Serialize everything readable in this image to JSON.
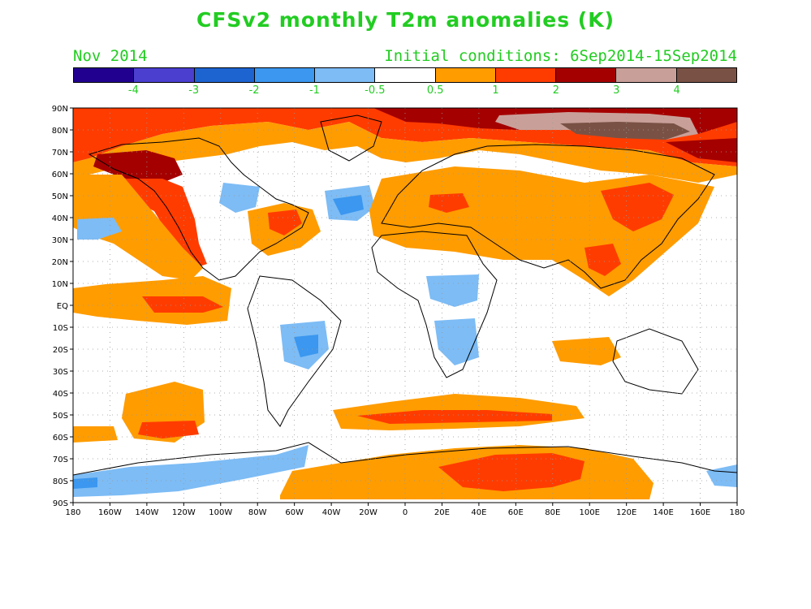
{
  "title": "CFSv2 monthly T2m anomalies (K)",
  "month": "Nov 2014",
  "initial_conditions": "Initial conditions: 6Sep2014-15Sep2014",
  "colorbar": {
    "colors": [
      "#22008f",
      "#4a3fcf",
      "#1d64d1",
      "#3b97ef",
      "#7dbcf5",
      "#ffffff",
      "#ff9c00",
      "#ff3c00",
      "#a50000",
      "#c9a099",
      "#7a5245"
    ],
    "labels": [
      "-4",
      "-3",
      "-2",
      "-1",
      "-0.5",
      "0.5",
      "1",
      "2",
      "3",
      "4"
    ]
  },
  "lat_labels": [
    "90N",
    "80N",
    "70N",
    "60N",
    "50N",
    "40N",
    "30N",
    "20N",
    "10N",
    "EQ",
    "10S",
    "20S",
    "30S",
    "40S",
    "50S",
    "60S",
    "70S",
    "80S",
    "90S"
  ],
  "lon_labels": [
    "180",
    "160W",
    "140W",
    "120W",
    "100W",
    "80W",
    "60W",
    "40W",
    "20W",
    "0",
    "20E",
    "40E",
    "60E",
    "80E",
    "100E",
    "120E",
    "140E",
    "160E",
    "180"
  ]
}
